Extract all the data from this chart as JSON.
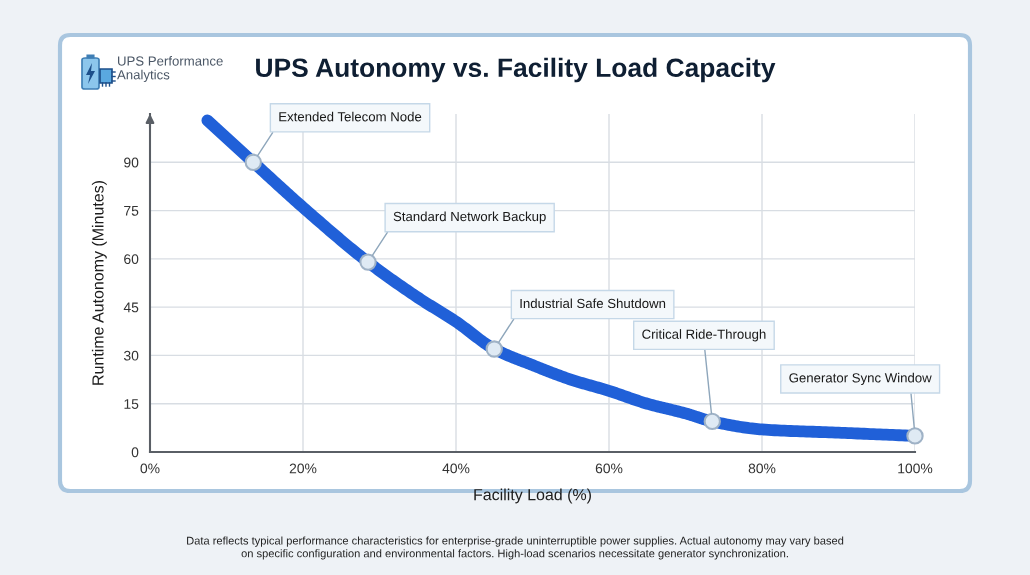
{
  "chart_data": {
    "type": "line",
    "title": "UPS Autonomy vs. Facility Load Capacity",
    "subtitle": "UPS Performance\nAnalytics",
    "xlabel": "Facility Load (%)",
    "ylabel": "Runtime Autonomy (Minutes)",
    "x": [
      7.5,
      13.5,
      20,
      28.5,
      35,
      40,
      45,
      50,
      55,
      60,
      65,
      70,
      73.5,
      80,
      90,
      100
    ],
    "series": [
      {
        "color": "#2060d8",
        "values": [
          103,
          90,
          76,
          59,
          48,
          40.5,
          32,
          27,
          22.5,
          19,
          15,
          12,
          9.5,
          7,
          6,
          5
        ]
      }
    ],
    "xlim": [
      0,
      100
    ],
    "xticks": [
      {
        "value": 0,
        "label": "0%"
      },
      {
        "value": 20,
        "label": "20%"
      },
      {
        "value": 40,
        "label": "40%"
      },
      {
        "value": 60,
        "label": "60%"
      },
      {
        "value": 80,
        "label": "80%"
      },
      {
        "value": 100,
        "label": "100%"
      }
    ],
    "ylim": [
      0,
      105
    ],
    "yticks": [
      0,
      15,
      30,
      45,
      60,
      75,
      90
    ],
    "grid": true,
    "marker": "none",
    "line_style": "solid",
    "annotations": [
      {
        "text": "Extended Telecom Node",
        "x": 13.5,
        "y": 90
      },
      {
        "text": "Standard Network Backup",
        "x": 28.5,
        "y": 59
      },
      {
        "text": "Industrial Safe Shutdown",
        "x": 45,
        "y": 32
      },
      {
        "text": "Critical Ride-Through",
        "x": 73.5,
        "y": 9.5
      },
      {
        "text": "Generator Sync Window",
        "x": 100,
        "y": 5
      },
      "Data reflects typical performance characteristics for enterprise-grade uninterruptible power supplies. Actual autonomy may vary based\non specific configuration and environmental factors. High-load scenarios necessitate generator synchronization."
    ]
  }
}
